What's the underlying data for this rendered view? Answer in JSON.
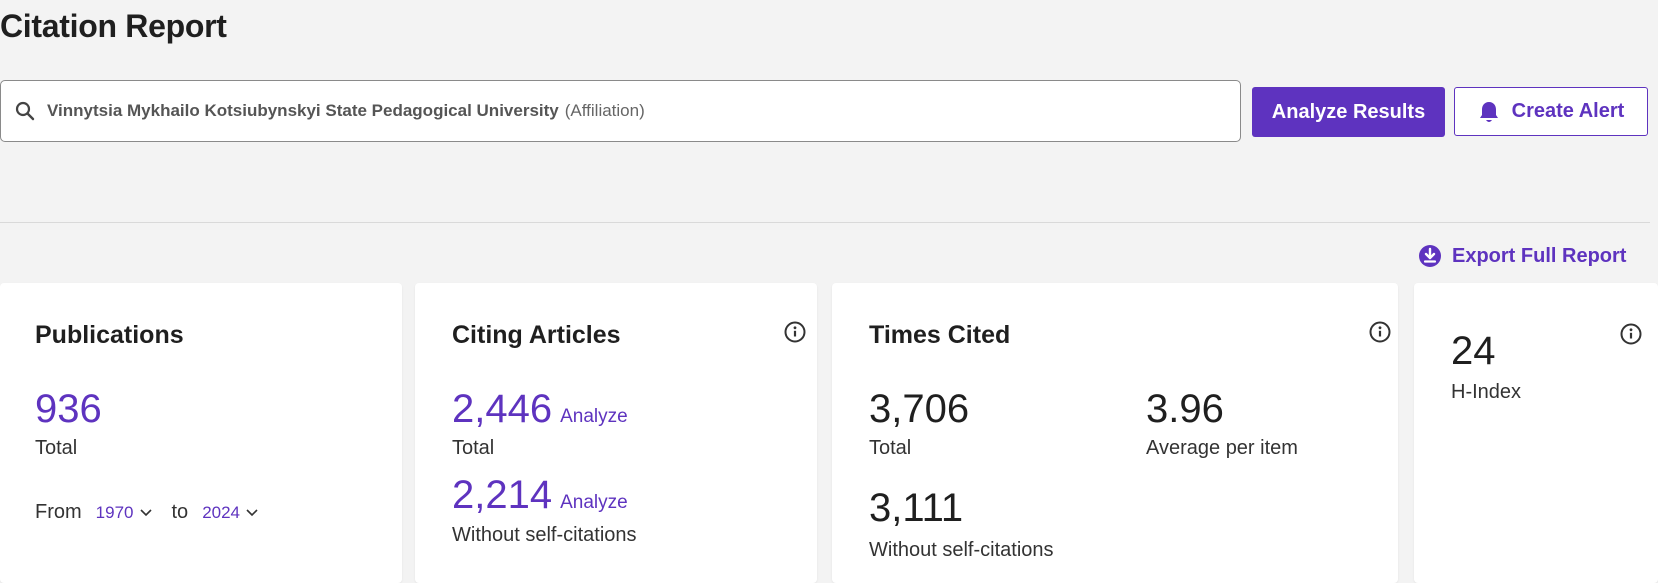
{
  "page": {
    "title": "Citation Report"
  },
  "search": {
    "query": "Vinnytsia Mykhailo Kotsiubynskyi State Pedagogical University",
    "qualifier": "(Affiliation)"
  },
  "actions": {
    "analyze_label": "Analyze Results",
    "alert_label": "Create Alert",
    "export_label": "Export Full Report"
  },
  "publications": {
    "title": "Publications",
    "total": "936",
    "total_label": "Total",
    "from_label": "From",
    "from_year": "1970",
    "to_label": "to",
    "to_year": "2024"
  },
  "citing_articles": {
    "title": "Citing Articles",
    "total": "2,446",
    "total_link": "Analyze",
    "total_label": "Total",
    "without_self": "2,214",
    "without_self_link": "Analyze",
    "without_self_label": "Without self-citations"
  },
  "times_cited": {
    "title": "Times Cited",
    "total": "3,706",
    "total_label": "Total",
    "average": "3.96",
    "average_label": "Average per item",
    "without_self": "3,111",
    "without_self_label": "Without self-citations"
  },
  "h_index": {
    "value": "24",
    "label": "H-Index"
  },
  "colors": {
    "accent": "#5e33bf",
    "background": "#f3f3f3",
    "card": "#ffffff"
  },
  "icons": {
    "search": "search-icon",
    "bell": "bell-icon",
    "download": "download-icon",
    "info": "info-icon",
    "chevron": "chevron-down-icon"
  }
}
